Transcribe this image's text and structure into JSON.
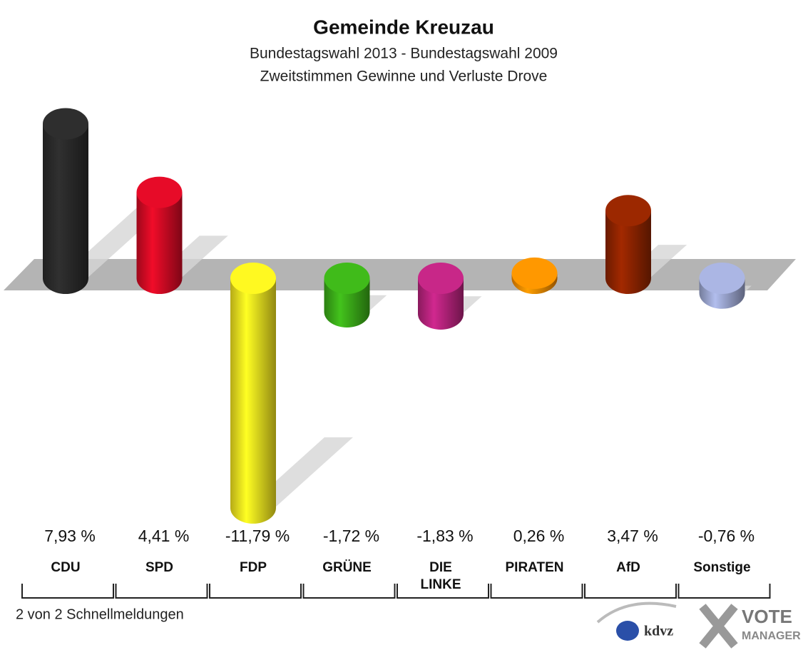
{
  "chart_data": {
    "type": "bar",
    "title": "Gemeinde Kreuzau",
    "subtitle": [
      "Bundestagswahl 2013 - Bundestagswahl 2009",
      "Zweitstimmen Gewinne und Verluste Drove"
    ],
    "categories": [
      "CDU",
      "SPD",
      "FDP",
      "GRÜNE",
      "DIE LINKE",
      "PIRATEN",
      "AfD",
      "Sonstige"
    ],
    "values": [
      7.93,
      4.41,
      -11.79,
      -1.72,
      -1.83,
      0.26,
      3.47,
      -0.76
    ],
    "value_labels": [
      "7,93 %",
      "4,41 %",
      "-11,79 %",
      "-1,72 %",
      "-1,83 %",
      "0,26 %",
      "3,47 %",
      "-0,76 %"
    ],
    "colors": [
      "#2a2a2a",
      "#d20a24",
      "#f2e21e",
      "#3aaa18",
      "#b6237c",
      "#f58a00",
      "#8e2400",
      "#9ba5cf"
    ],
    "footer": "2 von 2 Schnellmeldungen",
    "logos": [
      "kdvz",
      "VOTE",
      "MANAGER"
    ]
  }
}
